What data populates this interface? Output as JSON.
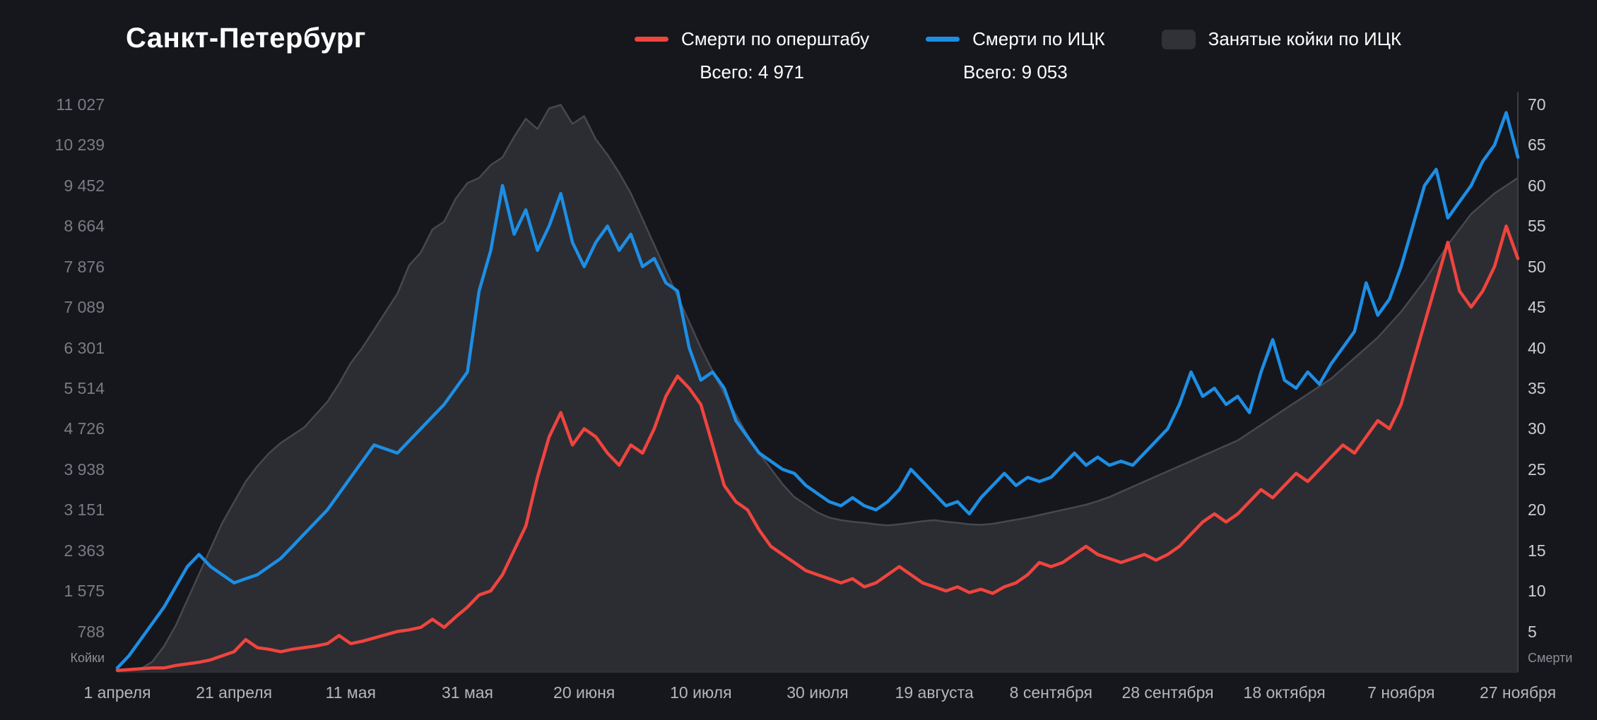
{
  "chart_data": {
    "type": "mixed",
    "title": "Санкт-Петербург",
    "x_step_days": 2,
    "x_total_days": 240,
    "x_tick_labels": [
      "1 апреля",
      "21 апреля",
      "11 мая",
      "31 мая",
      "20 июня",
      "10 июля",
      "30 июля",
      "19 августа",
      "8 сентября",
      "28 сентября",
      "18 октября",
      "7 ноября",
      "27 ноября"
    ],
    "left_axis": {
      "title": "Койки",
      "min": 0,
      "max": 11027,
      "tick_labels": [
        "788",
        "1 575",
        "2 363",
        "3 151",
        "3 938",
        "4 726",
        "5 514",
        "6 301",
        "7 089",
        "7 876",
        "8 664",
        "9 452",
        "10 239",
        "11 027"
      ]
    },
    "right_axis": {
      "title": "Смерти",
      "min": 0,
      "max": 70,
      "tick_labels": [
        "5",
        "10",
        "15",
        "20",
        "25",
        "30",
        "35",
        "40",
        "45",
        "50",
        "55",
        "60",
        "65",
        "70"
      ]
    },
    "series": [
      {
        "name": "Занятые койки по ИЦК",
        "type": "area",
        "axis": "left",
        "color": "#2b2d33",
        "values": [
          40,
          45,
          60,
          200,
          500,
          900,
          1400,
          1900,
          2400,
          2900,
          3300,
          3700,
          4000,
          4250,
          4450,
          4600,
          4750,
          5000,
          5250,
          5600,
          6000,
          6300,
          6650,
          7000,
          7350,
          7900,
          8150,
          8600,
          8750,
          9200,
          9500,
          9600,
          9850,
          10000,
          10400,
          10750,
          10550,
          10950,
          11020,
          10650,
          10800,
          10350,
          10050,
          9700,
          9300,
          8800,
          8300,
          7800,
          7300,
          6800,
          6300,
          5850,
          5400,
          5000,
          4600,
          4250,
          3950,
          3650,
          3400,
          3250,
          3100,
          3000,
          2950,
          2920,
          2900,
          2870,
          2850,
          2870,
          2900,
          2930,
          2950,
          2920,
          2900,
          2870,
          2860,
          2880,
          2920,
          2960,
          3000,
          3050,
          3100,
          3150,
          3200,
          3250,
          3320,
          3400,
          3500,
          3600,
          3700,
          3800,
          3900,
          4000,
          4100,
          4200,
          4300,
          4400,
          4500,
          4650,
          4800,
          4950,
          5100,
          5250,
          5400,
          5550,
          5700,
          5900,
          6100,
          6300,
          6500,
          6750,
          7000,
          7300,
          7600,
          7950,
          8300,
          8600,
          8900,
          9100,
          9300,
          9450,
          9600
        ]
      },
      {
        "name": "Смерти по оперштабу",
        "type": "line",
        "axis": "right",
        "color": "#f0443e",
        "total_label": "Всего: 4 971",
        "values": [
          0.2,
          0.3,
          0.4,
          0.5,
          0.5,
          0.8,
          1,
          1.2,
          1.5,
          2,
          2.5,
          4,
          3,
          2.8,
          2.5,
          2.8,
          3,
          3.2,
          3.5,
          4.5,
          3.5,
          3.8,
          4.2,
          4.6,
          5,
          5.2,
          5.5,
          6.5,
          5.5,
          6.8,
          8,
          9.5,
          10,
          12,
          15,
          18,
          24,
          29,
          32,
          28,
          30,
          29,
          27,
          25.5,
          28,
          27,
          30,
          34,
          36.5,
          35,
          33,
          28,
          23,
          21,
          20,
          17.5,
          15.5,
          14.5,
          13.5,
          12.5,
          12,
          11.5,
          11,
          11.5,
          10.5,
          11,
          12,
          13,
          12,
          11,
          10.5,
          10,
          10.5,
          9.8,
          10.2,
          9.7,
          10.5,
          11,
          12,
          13.5,
          13,
          13.5,
          14.5,
          15.5,
          14.5,
          14,
          13.5,
          14,
          14.5,
          13.8,
          14.5,
          15.5,
          17,
          18.5,
          19.5,
          18.5,
          19.5,
          21,
          22.5,
          21.5,
          23,
          24.5,
          23.5,
          25,
          26.5,
          28,
          27,
          29,
          31,
          30,
          33,
          38,
          43,
          48,
          53,
          47,
          45,
          47,
          50,
          55,
          51
        ]
      },
      {
        "name": "Смерти по ИЦК",
        "type": "line",
        "axis": "right",
        "color": "#1d8ee5",
        "total_label": "Всего: 9 053",
        "values": [
          0.5,
          2,
          4,
          6,
          8,
          10.5,
          13,
          14.5,
          13,
          12,
          11,
          11.5,
          12,
          13,
          14,
          15.5,
          17,
          18.5,
          20,
          22,
          24,
          26,
          28,
          27.5,
          27,
          28.5,
          30,
          31.5,
          33,
          35,
          37,
          47,
          52,
          60,
          54,
          57,
          52,
          55,
          59,
          53,
          50,
          53,
          55,
          52,
          54,
          50,
          51,
          48,
          47,
          40,
          36,
          37,
          35,
          31,
          29,
          27,
          26,
          25,
          24.5,
          23,
          22,
          21,
          20.5,
          21.5,
          20.5,
          20,
          21,
          22.5,
          25,
          23.5,
          22,
          20.5,
          21,
          19.5,
          21.5,
          23,
          24.5,
          23,
          24,
          23.5,
          24,
          25.5,
          27,
          25.5,
          26.5,
          25.5,
          26,
          25.5,
          27,
          28.5,
          30,
          33,
          37,
          34,
          35,
          33,
          34,
          32,
          37,
          41,
          36,
          35,
          37,
          35.5,
          38,
          40,
          42,
          48,
          44,
          46,
          50,
          55,
          60,
          62,
          56,
          58,
          60,
          63,
          65,
          69,
          63.5
        ]
      }
    ]
  }
}
